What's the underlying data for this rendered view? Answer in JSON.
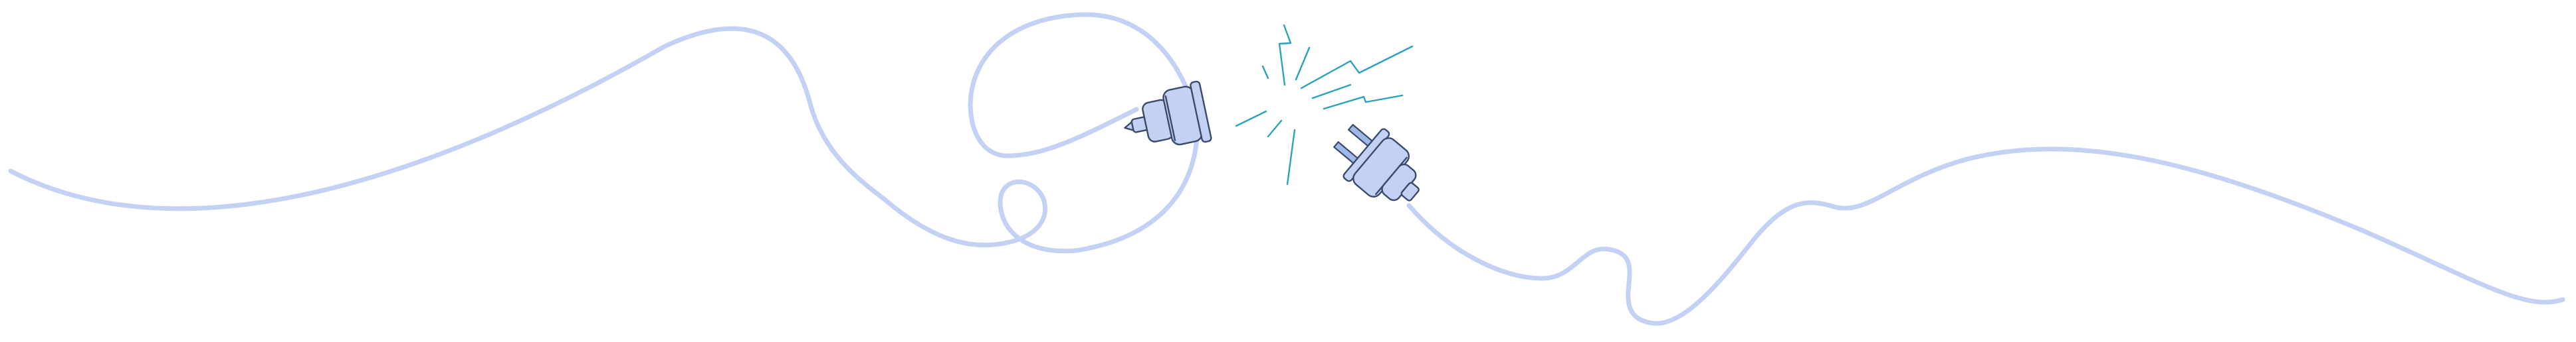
{
  "scene": {
    "subject": "disconnected-power-plug",
    "colors": {
      "background": "#ffffff",
      "cable": "#c3d2f4",
      "plug_fill": "#c3d2f4",
      "plug_outline": "#3a4a6b",
      "spark": "#2aa2b8"
    },
    "icons": [
      "socket-plug-icon",
      "male-plug-icon",
      "electric-spark-icon"
    ]
  }
}
